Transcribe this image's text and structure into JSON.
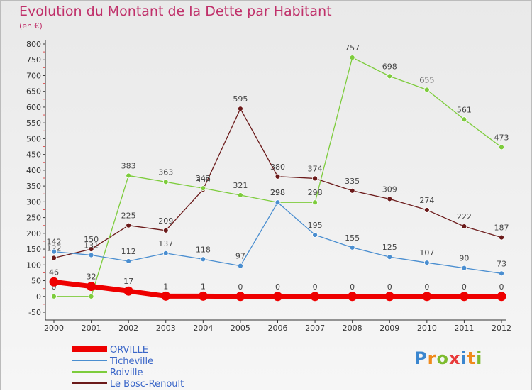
{
  "chart_data": {
    "type": "line",
    "title": "Evolution du Montant de la Dette par Habitant",
    "subtitle": "(en €)",
    "categories": [
      "2000",
      "2001",
      "2002",
      "2003",
      "2004",
      "2005",
      "2006",
      "2007",
      "2008",
      "2009",
      "2010",
      "2011",
      "2012"
    ],
    "ylim": [
      -50,
      800
    ],
    "yticks": [
      -50,
      0,
      50,
      100,
      150,
      200,
      250,
      300,
      350,
      400,
      450,
      500,
      550,
      600,
      650,
      700,
      750,
      800
    ],
    "grid": false,
    "legend_position": "bottom-left",
    "series": [
      {
        "name": "Le Bosc-Renoult",
        "color": "#6b1a1a",
        "values": [
          122,
          150,
          225,
          209,
          339,
          595,
          380,
          374,
          335,
          309,
          274,
          222,
          187
        ]
      },
      {
        "name": "Roiville",
        "color": "#7dcc3c",
        "values": [
          0,
          0,
          383,
          363,
          343,
          321,
          298,
          298,
          757,
          698,
          655,
          561,
          473
        ]
      },
      {
        "name": "Ticheville",
        "color": "#4a8ed0",
        "values": [
          142,
          131,
          112,
          137,
          118,
          97,
          298,
          195,
          155,
          125,
          107,
          90,
          73
        ]
      },
      {
        "name": "ORVILLE",
        "color": "#ee0000",
        "values": [
          46,
          32,
          17,
          1,
          1,
          0,
          0,
          0,
          0,
          0,
          0,
          0,
          0
        ]
      }
    ],
    "legend_order": [
      "ORVILLE",
      "Ticheville",
      "Roiville",
      "Le Bosc-Renoult"
    ]
  },
  "brand": {
    "letters": [
      "P",
      "r",
      "o",
      "x",
      "i",
      "t",
      "i"
    ],
    "colors": [
      "#3a86cf",
      "#f08a1c",
      "#7dbb2e",
      "#e83a3a",
      "#3a86cf",
      "#f08a1c",
      "#7dbb2e"
    ]
  },
  "legend_text_color": "#3a66c8"
}
